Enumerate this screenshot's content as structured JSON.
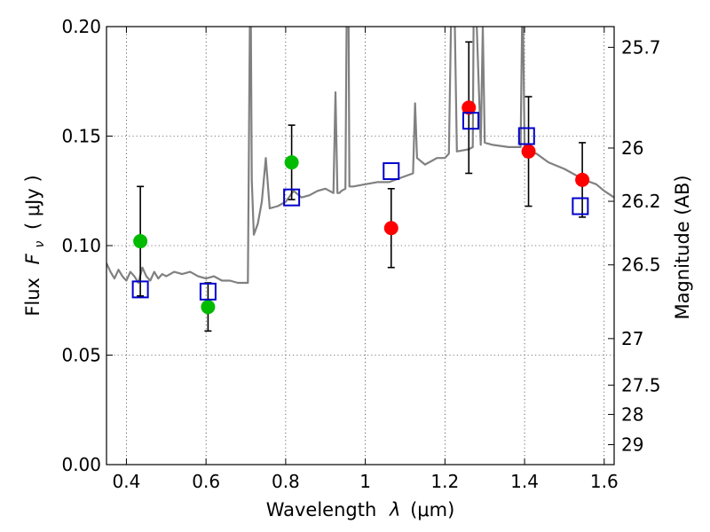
{
  "chart_data": {
    "type": "scatter",
    "xlabel_main": "Wavelength",
    "xlabel_symbol": "λ",
    "xlabel_unit": "(μm)",
    "ylabel_main": "Flux",
    "ylabel_symbol": "F",
    "ylabel_sub": "ν",
    "ylabel_unit": "( μJy )",
    "y2label": "Magnitude (AB)",
    "xlim": [
      0.35,
      1.625
    ],
    "ylim": [
      0.0,
      0.2
    ],
    "grid": true,
    "x_ticks": [
      {
        "value": 0.4,
        "label": "0.4"
      },
      {
        "value": 0.6,
        "label": "0.6"
      },
      {
        "value": 0.8,
        "label": "0.8"
      },
      {
        "value": 1.0,
        "label": "1"
      },
      {
        "value": 1.2,
        "label": "1.2"
      },
      {
        "value": 1.4,
        "label": "1.4"
      },
      {
        "value": 1.6,
        "label": "1.6"
      }
    ],
    "y_ticks": [
      {
        "value": 0.0,
        "label": "0.00"
      },
      {
        "value": 0.05,
        "label": "0.05"
      },
      {
        "value": 0.1,
        "label": "0.10"
      },
      {
        "value": 0.15,
        "label": "0.15"
      },
      {
        "value": 0.2,
        "label": "0.20"
      }
    ],
    "mag_ticks": [
      {
        "mag": 25.7,
        "label": "25.7"
      },
      {
        "mag": 26,
        "label": "26"
      },
      {
        "mag": 26.2,
        "label": "26.2"
      },
      {
        "mag": 26.5,
        "label": "26.5"
      },
      {
        "mag": 27,
        "label": "27"
      },
      {
        "mag": 27.5,
        "label": "27.5"
      },
      {
        "mag": 28,
        "label": "28"
      },
      {
        "mag": 29,
        "label": "29"
      }
    ],
    "series": [
      {
        "kind": "spectrum",
        "color": "#808080",
        "x": [
          0.35,
          0.36,
          0.37,
          0.38,
          0.39,
          0.4,
          0.41,
          0.42,
          0.43,
          0.44,
          0.45,
          0.46,
          0.47,
          0.48,
          0.49,
          0.5,
          0.52,
          0.54,
          0.56,
          0.58,
          0.6,
          0.62,
          0.64,
          0.66,
          0.68,
          0.7,
          0.705,
          0.71,
          0.712,
          0.715,
          0.72,
          0.73,
          0.74,
          0.75,
          0.76,
          0.78,
          0.8,
          0.82,
          0.84,
          0.86,
          0.88,
          0.9,
          0.92,
          0.925,
          0.93,
          0.935,
          0.94,
          0.95,
          0.953,
          0.955,
          0.958,
          0.96,
          0.965,
          0.97,
          1.0,
          1.03,
          1.06,
          1.09,
          1.12,
          1.12,
          1.125,
          1.13,
          1.15,
          1.18,
          1.2,
          1.21,
          1.215,
          1.22,
          1.225,
          1.23,
          1.26,
          1.27,
          1.272,
          1.275,
          1.28,
          1.29,
          1.29,
          1.295,
          1.3,
          1.32,
          1.36,
          1.38,
          1.39,
          1.395,
          1.4,
          1.41,
          1.43,
          1.46,
          1.5,
          1.55,
          1.58,
          1.6,
          1.625
        ],
        "y": [
          0.092,
          0.088,
          0.085,
          0.089,
          0.086,
          0.084,
          0.088,
          0.086,
          0.083,
          0.09,
          0.086,
          0.084,
          0.088,
          0.085,
          0.087,
          0.086,
          0.088,
          0.087,
          0.088,
          0.086,
          0.085,
          0.086,
          0.084,
          0.084,
          0.083,
          0.083,
          0.083,
          0.2,
          0.22,
          0.13,
          0.105,
          0.11,
          0.12,
          0.14,
          0.117,
          0.118,
          0.12,
          0.125,
          0.122,
          0.123,
          0.125,
          0.126,
          0.124,
          0.17,
          0.124,
          0.124,
          0.125,
          0.126,
          0.2,
          0.22,
          0.2,
          0.127,
          0.127,
          0.127,
          0.128,
          0.129,
          0.129,
          0.131,
          0.133,
          0.133,
          0.165,
          0.14,
          0.137,
          0.14,
          0.14,
          0.142,
          0.2,
          0.22,
          0.2,
          0.143,
          0.144,
          0.145,
          0.2,
          0.22,
          0.2,
          0.146,
          0.146,
          0.2,
          0.147,
          0.146,
          0.145,
          0.145,
          0.145,
          0.22,
          0.145,
          0.143,
          0.142,
          0.138,
          0.135,
          0.13,
          0.128,
          0.125,
          0.122
        ]
      },
      {
        "kind": "green_points",
        "color": "#00bb00",
        "x": [
          0.435,
          0.605,
          0.815
        ],
        "y": [
          0.102,
          0.072,
          0.138
        ],
        "err": [
          0.025,
          0.011,
          0.017
        ]
      },
      {
        "kind": "red_points",
        "color": "#ff0000",
        "x": [
          1.065,
          1.26,
          1.41,
          1.545
        ],
        "y": [
          0.108,
          0.163,
          0.143,
          0.13
        ],
        "err": [
          0.018,
          0.03,
          0.025,
          0.017
        ]
      },
      {
        "kind": "model_squares",
        "color": "#0000cc",
        "x": [
          0.435,
          0.605,
          0.815,
          1.065,
          1.265,
          1.405,
          1.54
        ],
        "y": [
          0.08,
          0.079,
          0.122,
          0.134,
          0.157,
          0.15,
          0.118
        ]
      }
    ]
  }
}
